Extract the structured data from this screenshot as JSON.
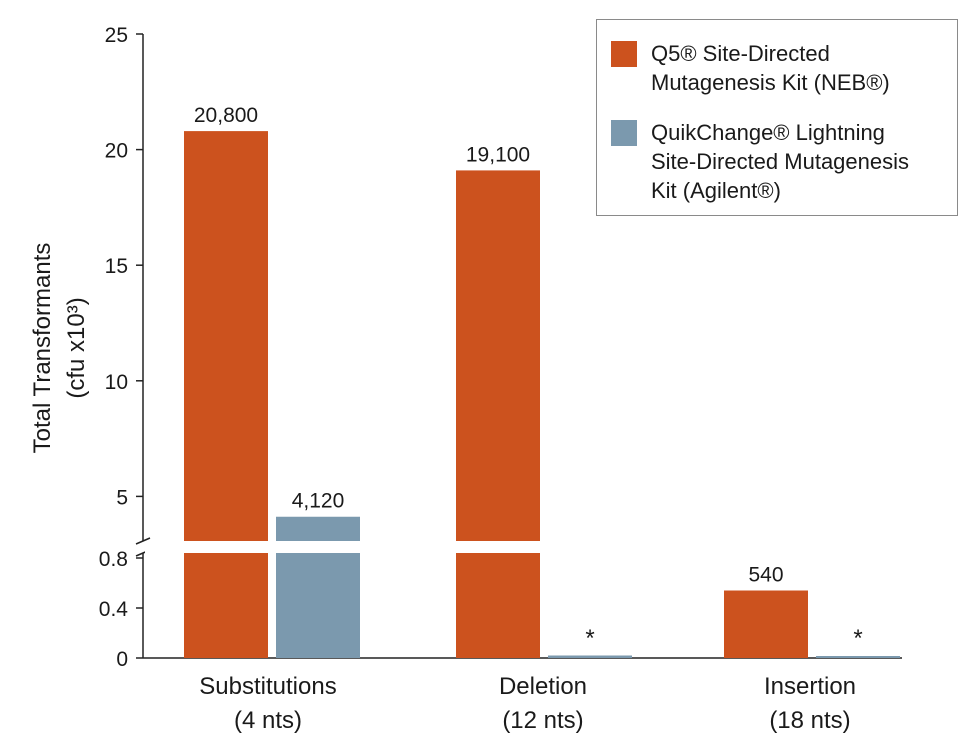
{
  "chart_data": {
    "type": "bar",
    "ylabel": "Total Transformants",
    "ylabel_unit": "(cfu x10³)",
    "categories": [
      {
        "name": "Substitutions",
        "sub": "(4 nts)"
      },
      {
        "name": "Deletion",
        "sub": "(12 nts)"
      },
      {
        "name": "Insertion",
        "sub": "(18 nts)"
      }
    ],
    "series": [
      {
        "name": "Q5® Site-Directed\nMutagenesis Kit (NEB®)",
        "color": "#cc521e",
        "values": [
          20.8,
          19.1,
          0.54
        ],
        "labels": [
          "20,800",
          "19,100",
          "540"
        ]
      },
      {
        "name": "QuikChange® Lightning\nSite-Directed Mutagenesis\nKit (Agilent®)",
        "color": "#7b99ae",
        "values": [
          4.12,
          0.02,
          0.005
        ],
        "labels": [
          "4,120",
          "*",
          "*"
        ]
      }
    ],
    "y_axis_broken": true,
    "ylim_lower": [
      0,
      0.8
    ],
    "ylim_upper": [
      3,
      25
    ],
    "yticks_lower": [
      "0",
      "0.4",
      "0.8"
    ],
    "yticks_upper": [
      "5",
      "10",
      "15",
      "20",
      "25"
    ],
    "legend_position": "top-right",
    "grid": false
  }
}
